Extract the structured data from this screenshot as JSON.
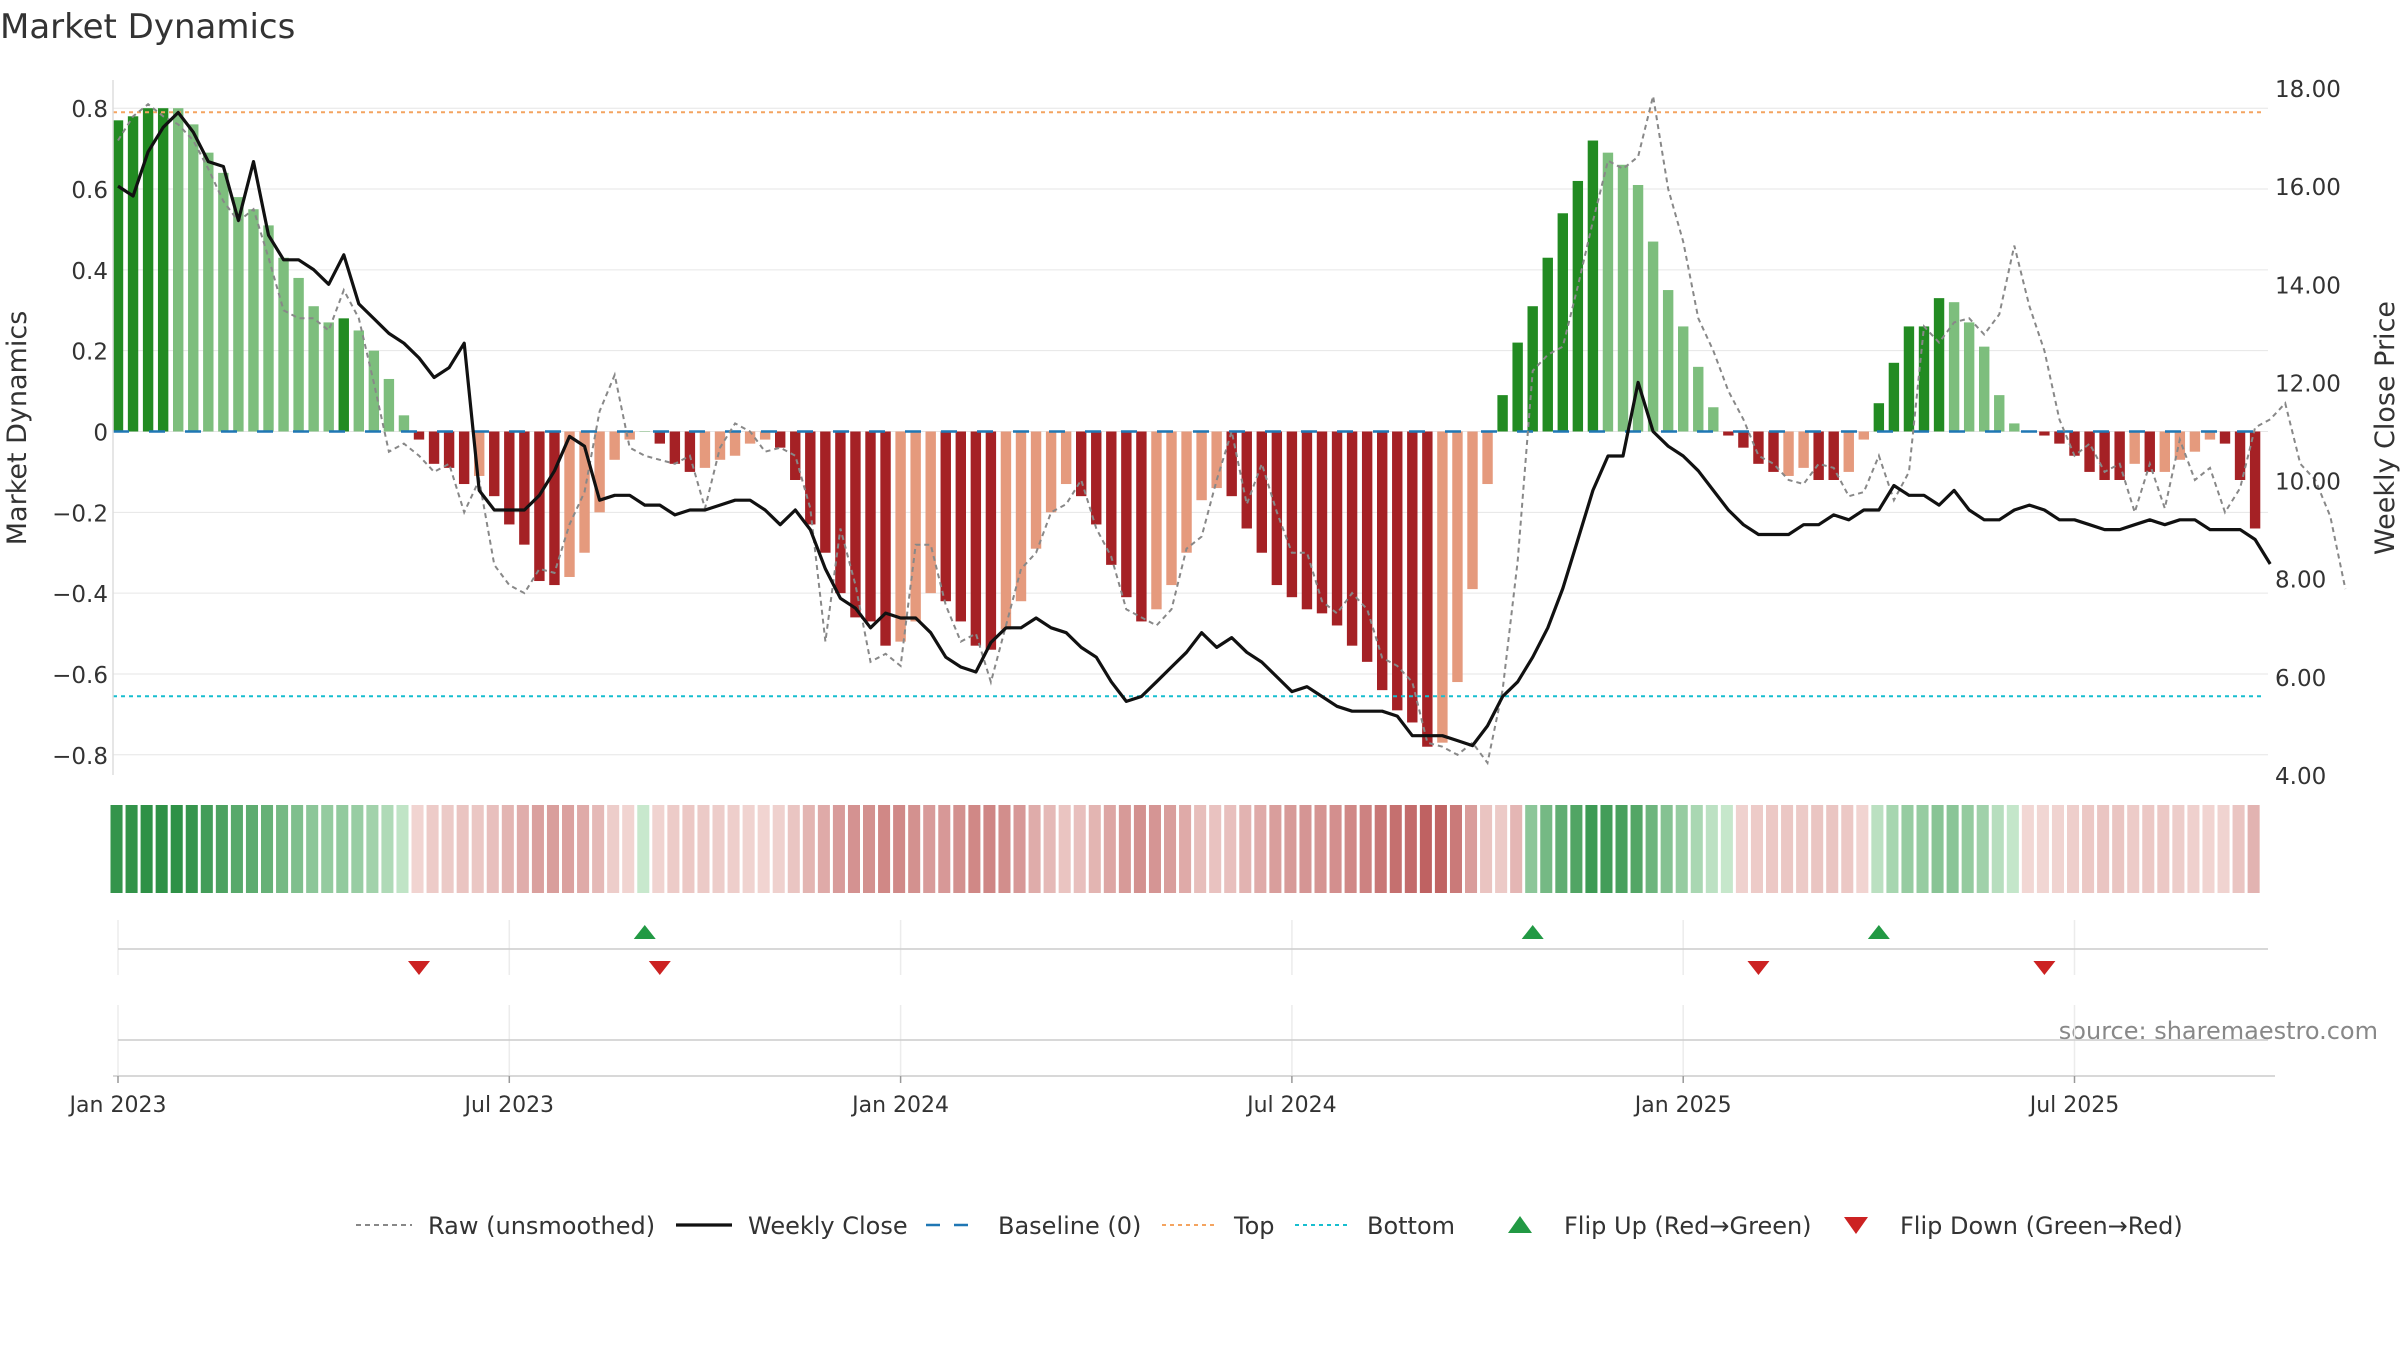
{
  "chart_data": {
    "type": "bar",
    "title": "Market Dynamics",
    "ylabel_left": "Market Dynamics",
    "ylabel_right": "Weekly Close Price",
    "source": "source: sharemaestro.com",
    "ylim_left": [
      -0.85,
      0.85
    ],
    "ylim_right": [
      4.0,
      18.0
    ],
    "yticks_left": [
      {
        "v": 0.8,
        "label": "0.8"
      },
      {
        "v": 0.6,
        "label": "0.6"
      },
      {
        "v": 0.4,
        "label": "0.4"
      },
      {
        "v": 0.2,
        "label": "0.2"
      },
      {
        "v": 0,
        "label": "0"
      },
      {
        "v": -0.2,
        "label": "−0.2"
      },
      {
        "v": -0.4,
        "label": "−0.4"
      },
      {
        "v": -0.6,
        "label": "−0.6"
      },
      {
        "v": -0.8,
        "label": "−0.8"
      }
    ],
    "yticks_right": [
      {
        "v": 18,
        "label": "18.00"
      },
      {
        "v": 16,
        "label": "16.00"
      },
      {
        "v": 14,
        "label": "14.00"
      },
      {
        "v": 12,
        "label": "12.00"
      },
      {
        "v": 10,
        "label": "10.00"
      },
      {
        "v": 8,
        "label": "8.00"
      },
      {
        "v": 6,
        "label": "6.00"
      },
      {
        "v": 4,
        "label": "4.00"
      }
    ],
    "xticks": [
      {
        "week": 0,
        "label": "Jan 2023"
      },
      {
        "week": 26,
        "label": "Jul 2023"
      },
      {
        "week": 52,
        "label": "Jan 2024"
      },
      {
        "week": 78,
        "label": "Jul 2024"
      },
      {
        "week": 104,
        "label": "Jan 2025"
      },
      {
        "week": 130,
        "label": "Jul 2025"
      }
    ],
    "top_line": 0.79,
    "bottom_line": -0.655,
    "baseline": 0,
    "colors": {
      "strong_green": "#228B22",
      "light_green": "#7DBE7D",
      "strong_red": "#A52125",
      "light_red": "#E59A7D",
      "raw": "#888888",
      "close": "#111111",
      "baseline": "#1F77B4",
      "top": "#F4A460",
      "bottom": "#17BECF",
      "flip_up": "#229944",
      "flip_down": "#CC2222"
    },
    "bars": [
      {
        "v": 0.77,
        "s": 1
      },
      {
        "v": 0.78,
        "s": 1
      },
      {
        "v": 0.8,
        "s": 1
      },
      {
        "v": 0.8,
        "s": 1
      },
      {
        "v": 0.8,
        "s": 0
      },
      {
        "v": 0.76,
        "s": 0
      },
      {
        "v": 0.69,
        "s": 0
      },
      {
        "v": 0.64,
        "s": 0
      },
      {
        "v": 0.58,
        "s": 0
      },
      {
        "v": 0.55,
        "s": 0
      },
      {
        "v": 0.51,
        "s": 0
      },
      {
        "v": 0.43,
        "s": 0
      },
      {
        "v": 0.38,
        "s": 0
      },
      {
        "v": 0.31,
        "s": 0
      },
      {
        "v": 0.27,
        "s": 0
      },
      {
        "v": 0.28,
        "s": 1
      },
      {
        "v": 0.25,
        "s": 0
      },
      {
        "v": 0.2,
        "s": 0
      },
      {
        "v": 0.13,
        "s": 0
      },
      {
        "v": 0.04,
        "s": 0
      },
      {
        "v": -0.02,
        "s": 1
      },
      {
        "v": -0.08,
        "s": 1
      },
      {
        "v": -0.09,
        "s": 1
      },
      {
        "v": -0.13,
        "s": 1
      },
      {
        "v": -0.11,
        "s": 0
      },
      {
        "v": -0.16,
        "s": 1
      },
      {
        "v": -0.23,
        "s": 1
      },
      {
        "v": -0.28,
        "s": 1
      },
      {
        "v": -0.37,
        "s": 1
      },
      {
        "v": -0.38,
        "s": 1
      },
      {
        "v": -0.36,
        "s": 0
      },
      {
        "v": -0.3,
        "s": 0
      },
      {
        "v": -0.2,
        "s": 0
      },
      {
        "v": -0.07,
        "s": 0
      },
      {
        "v": -0.02,
        "s": 0
      },
      {
        "v": 0.0,
        "s": 0
      },
      {
        "v": -0.03,
        "s": 1
      },
      {
        "v": -0.08,
        "s": 1
      },
      {
        "v": -0.1,
        "s": 1
      },
      {
        "v": -0.09,
        "s": 0
      },
      {
        "v": -0.07,
        "s": 0
      },
      {
        "v": -0.06,
        "s": 0
      },
      {
        "v": -0.03,
        "s": 0
      },
      {
        "v": -0.02,
        "s": 0
      },
      {
        "v": -0.04,
        "s": 1
      },
      {
        "v": -0.12,
        "s": 1
      },
      {
        "v": -0.23,
        "s": 1
      },
      {
        "v": -0.3,
        "s": 1
      },
      {
        "v": -0.4,
        "s": 1
      },
      {
        "v": -0.46,
        "s": 1
      },
      {
        "v": -0.47,
        "s": 1
      },
      {
        "v": -0.53,
        "s": 1
      },
      {
        "v": -0.52,
        "s": 0
      },
      {
        "v": -0.47,
        "s": 0
      },
      {
        "v": -0.4,
        "s": 0
      },
      {
        "v": -0.42,
        "s": 1
      },
      {
        "v": -0.47,
        "s": 1
      },
      {
        "v": -0.53,
        "s": 1
      },
      {
        "v": -0.54,
        "s": 1
      },
      {
        "v": -0.49,
        "s": 0
      },
      {
        "v": -0.42,
        "s": 0
      },
      {
        "v": -0.29,
        "s": 0
      },
      {
        "v": -0.2,
        "s": 0
      },
      {
        "v": -0.13,
        "s": 0
      },
      {
        "v": -0.16,
        "s": 1
      },
      {
        "v": -0.23,
        "s": 1
      },
      {
        "v": -0.33,
        "s": 1
      },
      {
        "v": -0.41,
        "s": 1
      },
      {
        "v": -0.47,
        "s": 1
      },
      {
        "v": -0.44,
        "s": 0
      },
      {
        "v": -0.38,
        "s": 0
      },
      {
        "v": -0.3,
        "s": 0
      },
      {
        "v": -0.17,
        "s": 0
      },
      {
        "v": -0.14,
        "s": 0
      },
      {
        "v": -0.16,
        "s": 1
      },
      {
        "v": -0.24,
        "s": 1
      },
      {
        "v": -0.3,
        "s": 1
      },
      {
        "v": -0.38,
        "s": 1
      },
      {
        "v": -0.41,
        "s": 1
      },
      {
        "v": -0.44,
        "s": 1
      },
      {
        "v": -0.45,
        "s": 1
      },
      {
        "v": -0.48,
        "s": 1
      },
      {
        "v": -0.53,
        "s": 1
      },
      {
        "v": -0.57,
        "s": 1
      },
      {
        "v": -0.64,
        "s": 1
      },
      {
        "v": -0.69,
        "s": 1
      },
      {
        "v": -0.72,
        "s": 1
      },
      {
        "v": -0.78,
        "s": 1
      },
      {
        "v": -0.77,
        "s": 0
      },
      {
        "v": -0.62,
        "s": 0
      },
      {
        "v": -0.39,
        "s": 0
      },
      {
        "v": -0.13,
        "s": 0
      },
      {
        "v": 0.09,
        "s": 1
      },
      {
        "v": 0.22,
        "s": 1
      },
      {
        "v": 0.31,
        "s": 1
      },
      {
        "v": 0.43,
        "s": 1
      },
      {
        "v": 0.54,
        "s": 1
      },
      {
        "v": 0.62,
        "s": 1
      },
      {
        "v": 0.72,
        "s": 1
      },
      {
        "v": 0.69,
        "s": 0
      },
      {
        "v": 0.66,
        "s": 0
      },
      {
        "v": 0.61,
        "s": 0
      },
      {
        "v": 0.47,
        "s": 0
      },
      {
        "v": 0.35,
        "s": 0
      },
      {
        "v": 0.26,
        "s": 0
      },
      {
        "v": 0.16,
        "s": 0
      },
      {
        "v": 0.06,
        "s": 0
      },
      {
        "v": -0.01,
        "s": 1
      },
      {
        "v": -0.04,
        "s": 1
      },
      {
        "v": -0.08,
        "s": 1
      },
      {
        "v": -0.1,
        "s": 1
      },
      {
        "v": -0.11,
        "s": 0
      },
      {
        "v": -0.09,
        "s": 0
      },
      {
        "v": -0.12,
        "s": 1
      },
      {
        "v": -0.12,
        "s": 1
      },
      {
        "v": -0.1,
        "s": 0
      },
      {
        "v": -0.02,
        "s": 0
      },
      {
        "v": 0.07,
        "s": 1
      },
      {
        "v": 0.17,
        "s": 1
      },
      {
        "v": 0.26,
        "s": 1
      },
      {
        "v": 0.26,
        "s": 1
      },
      {
        "v": 0.33,
        "s": 1
      },
      {
        "v": 0.32,
        "s": 0
      },
      {
        "v": 0.27,
        "s": 0
      },
      {
        "v": 0.21,
        "s": 0
      },
      {
        "v": 0.09,
        "s": 0
      },
      {
        "v": 0.02,
        "s": 0
      },
      {
        "v": 0.0,
        "s": 0
      },
      {
        "v": -0.01,
        "s": 1
      },
      {
        "v": -0.03,
        "s": 1
      },
      {
        "v": -0.06,
        "s": 1
      },
      {
        "v": -0.1,
        "s": 1
      },
      {
        "v": -0.12,
        "s": 1
      },
      {
        "v": -0.12,
        "s": 1
      },
      {
        "v": -0.08,
        "s": 0
      },
      {
        "v": -0.1,
        "s": 1
      },
      {
        "v": -0.1,
        "s": 0
      },
      {
        "v": -0.07,
        "s": 0
      },
      {
        "v": -0.05,
        "s": 0
      },
      {
        "v": -0.02,
        "s": 0
      },
      {
        "v": -0.03,
        "s": 1
      },
      {
        "v": -0.12,
        "s": 1
      },
      {
        "v": -0.24,
        "s": 1
      }
    ],
    "raw": [
      0.72,
      0.78,
      0.81,
      0.78,
      0.76,
      0.72,
      0.65,
      0.57,
      0.52,
      0.55,
      0.43,
      0.3,
      0.28,
      0.28,
      0.25,
      0.35,
      0.28,
      0.12,
      -0.05,
      -0.03,
      -0.06,
      -0.1,
      -0.08,
      -0.2,
      -0.12,
      -0.33,
      -0.38,
      -0.4,
      -0.34,
      -0.35,
      -0.23,
      -0.15,
      0.05,
      0.14,
      -0.04,
      -0.06,
      -0.07,
      -0.08,
      -0.06,
      -0.19,
      -0.04,
      0.02,
      0.0,
      -0.05,
      -0.04,
      -0.06,
      -0.19,
      -0.52,
      -0.24,
      -0.38,
      -0.57,
      -0.55,
      -0.58,
      -0.28,
      -0.28,
      -0.43,
      -0.52,
      -0.5,
      -0.62,
      -0.48,
      -0.34,
      -0.3,
      -0.2,
      -0.18,
      -0.12,
      -0.24,
      -0.31,
      -0.44,
      -0.46,
      -0.48,
      -0.44,
      -0.29,
      -0.26,
      -0.12,
      0.0,
      -0.18,
      -0.08,
      -0.2,
      -0.3,
      -0.3,
      -0.42,
      -0.45,
      -0.4,
      -0.44,
      -0.56,
      -0.58,
      -0.62,
      -0.77,
      -0.78,
      -0.8,
      -0.77,
      -0.82,
      -0.64,
      -0.32,
      0.15,
      0.19,
      0.21,
      0.36,
      0.52,
      0.67,
      0.65,
      0.68,
      0.83,
      0.6,
      0.47,
      0.28,
      0.2,
      0.1,
      0.03,
      -0.06,
      -0.08,
      -0.12,
      -0.13,
      -0.08,
      -0.09,
      -0.16,
      -0.15,
      -0.06,
      -0.17,
      -0.1,
      0.26,
      0.22,
      0.27,
      0.28,
      0.24,
      0.29,
      0.46,
      0.31,
      0.2,
      0.03,
      -0.06,
      -0.03,
      -0.1,
      -0.08,
      -0.2,
      -0.08,
      -0.19,
      -0.02,
      -0.12,
      -0.09,
      -0.2,
      -0.14,
      0.01,
      0.03,
      0.07,
      -0.08,
      -0.12,
      -0.21,
      -0.39
    ],
    "close": [
      16.0,
      15.8,
      16.7,
      17.2,
      17.5,
      17.1,
      16.5,
      16.4,
      15.3,
      16.5,
      15.0,
      14.5,
      14.5,
      14.3,
      14.0,
      14.6,
      13.6,
      13.3,
      13.0,
      12.8,
      12.5,
      12.1,
      12.3,
      12.8,
      9.8,
      9.4,
      9.4,
      9.4,
      9.7,
      10.2,
      10.9,
      10.7,
      9.6,
      9.7,
      9.7,
      9.5,
      9.5,
      9.3,
      9.4,
      9.4,
      9.5,
      9.6,
      9.6,
      9.4,
      9.1,
      9.4,
      9.0,
      8.2,
      7.6,
      7.4,
      7.0,
      7.3,
      7.2,
      7.2,
      6.9,
      6.4,
      6.2,
      6.1,
      6.7,
      7.0,
      7.0,
      7.2,
      7.0,
      6.9,
      6.6,
      6.4,
      5.9,
      5.5,
      5.6,
      5.9,
      6.2,
      6.5,
      6.9,
      6.6,
      6.8,
      6.5,
      6.3,
      6.0,
      5.7,
      5.8,
      5.6,
      5.4,
      5.3,
      5.3,
      5.3,
      5.2,
      4.8,
      4.8,
      4.8,
      4.7,
      4.6,
      5.0,
      5.6,
      5.9,
      6.4,
      7.0,
      7.8,
      8.8,
      9.8,
      10.5,
      10.5,
      12.0,
      11.0,
      10.7,
      10.5,
      10.2,
      9.8,
      9.4,
      9.1,
      8.9,
      8.9,
      8.9,
      9.1,
      9.1,
      9.3,
      9.2,
      9.4,
      9.4,
      9.9,
      9.7,
      9.7,
      9.5,
      9.8,
      9.4,
      9.2,
      9.2,
      9.4,
      9.5,
      9.4,
      9.2,
      9.2,
      9.1,
      9.0,
      9.0,
      9.1,
      9.2,
      9.1,
      9.2,
      9.2,
      9.0,
      9.0,
      9.0,
      8.8,
      8.3
    ],
    "strip_blocks": [
      {
        "from": 0,
        "to": 19,
        "color": "green"
      },
      {
        "from": 20,
        "to": 34,
        "color": "red"
      },
      {
        "from": 35,
        "to": 35,
        "color": "green"
      },
      {
        "from": 36,
        "to": 93,
        "color": "red"
      },
      {
        "from": 94,
        "to": 107,
        "color": "green"
      },
      {
        "from": 108,
        "to": 116,
        "color": "red"
      },
      {
        "from": 117,
        "to": 126,
        "color": "green"
      },
      {
        "from": 127,
        "to": 142,
        "color": "red"
      }
    ],
    "flips_up": [
      35,
      94,
      117
    ],
    "flips_down": [
      20,
      36,
      109,
      128
    ],
    "legend": [
      {
        "key": "raw",
        "label": "Raw (unsmoothed)"
      },
      {
        "key": "close",
        "label": "Weekly Close"
      },
      {
        "key": "baseline",
        "label": "Baseline (0)"
      },
      {
        "key": "top",
        "label": "Top"
      },
      {
        "key": "bottom",
        "label": "Bottom"
      },
      {
        "key": "flip_up",
        "label": "Flip Up (Red→Green)"
      },
      {
        "key": "flip_down",
        "label": "Flip Down (Green→Red)"
      }
    ]
  }
}
